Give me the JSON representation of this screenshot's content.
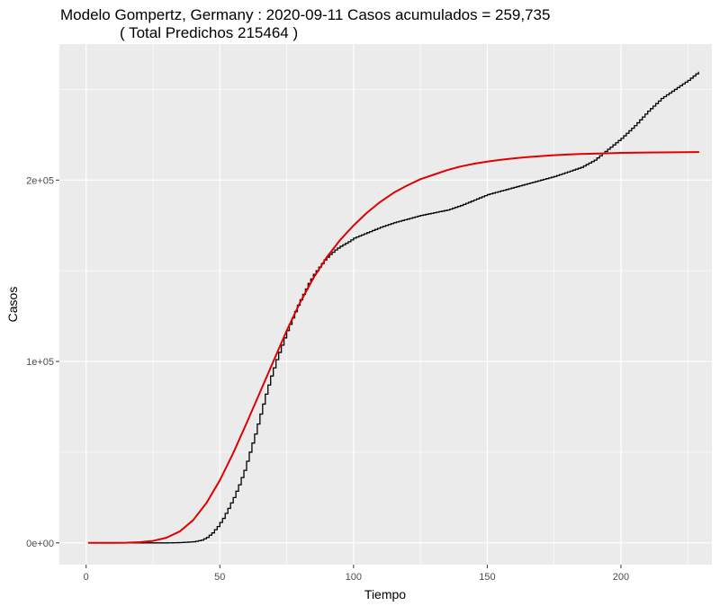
{
  "chart_data": {
    "type": "line",
    "title": "Modelo Gompertz, Germany : 2020-09-11 Casos acumulados =  259,735",
    "subtitle": "( Total Predichos  215464 )",
    "xlabel": "Tiempo",
    "ylabel": "Casos",
    "xlim": [
      -10,
      234
    ],
    "ylim": [
      -12000,
      275000
    ],
    "x_ticks": [
      0,
      50,
      100,
      150,
      200
    ],
    "x_tick_labels": [
      "0",
      "50",
      "100",
      "150",
      "200"
    ],
    "y_ticks": [
      0,
      100000,
      200000
    ],
    "y_tick_labels": [
      "0e+00",
      "1e+05",
      "2e+05"
    ],
    "grid": true,
    "panel_background": "#ebebeb",
    "series": [
      {
        "style": "step",
        "color": "#000000",
        "points": [
          [
            1,
            0
          ],
          [
            30,
            0
          ],
          [
            35,
            150
          ],
          [
            40,
            600
          ],
          [
            43,
            1500
          ],
          [
            45,
            3000
          ],
          [
            47,
            5500
          ],
          [
            49,
            9000
          ],
          [
            51,
            13500
          ],
          [
            53,
            19000
          ],
          [
            55,
            25000
          ],
          [
            57,
            32000
          ],
          [
            59,
            40000
          ],
          [
            61,
            50000
          ],
          [
            63,
            60000
          ],
          [
            65,
            71000
          ],
          [
            67,
            82000
          ],
          [
            69,
            92000
          ],
          [
            71,
            101000
          ],
          [
            73,
            109000
          ],
          [
            75,
            117000
          ],
          [
            77,
            124000
          ],
          [
            79,
            131000
          ],
          [
            81,
            137000
          ],
          [
            83,
            143000
          ],
          [
            85,
            148000
          ],
          [
            87,
            152000
          ],
          [
            89,
            156000
          ],
          [
            91,
            159000
          ],
          [
            93,
            161500
          ],
          [
            95,
            163500
          ],
          [
            98,
            166000
          ],
          [
            100,
            168000
          ],
          [
            105,
            171000
          ],
          [
            110,
            174000
          ],
          [
            115,
            176500
          ],
          [
            120,
            178500
          ],
          [
            125,
            180500
          ],
          [
            130,
            182000
          ],
          [
            135,
            183500
          ],
          [
            140,
            186000
          ],
          [
            145,
            189000
          ],
          [
            150,
            192000
          ],
          [
            155,
            194000
          ],
          [
            160,
            196000
          ],
          [
            165,
            198000
          ],
          [
            170,
            200000
          ],
          [
            175,
            202000
          ],
          [
            180,
            204500
          ],
          [
            185,
            207000
          ],
          [
            190,
            211000
          ],
          [
            195,
            217000
          ],
          [
            200,
            223000
          ],
          [
            205,
            230000
          ],
          [
            210,
            238000
          ],
          [
            215,
            245000
          ],
          [
            220,
            250000
          ],
          [
            225,
            255000
          ],
          [
            229,
            259735
          ]
        ]
      },
      {
        "style": "line",
        "color": "#e00000",
        "points": [
          [
            1,
            0
          ],
          [
            10,
            0
          ],
          [
            15,
            100
          ],
          [
            20,
            400
          ],
          [
            25,
            1100
          ],
          [
            30,
            2800
          ],
          [
            35,
            6300
          ],
          [
            40,
            12500
          ],
          [
            45,
            22000
          ],
          [
            50,
            34500
          ],
          [
            55,
            49500
          ],
          [
            60,
            66000
          ],
          [
            65,
            83000
          ],
          [
            70,
            100000
          ],
          [
            75,
            117000
          ],
          [
            80,
            132500
          ],
          [
            85,
            146000
          ],
          [
            90,
            157500
          ],
          [
            95,
            167000
          ],
          [
            100,
            175000
          ],
          [
            105,
            182000
          ],
          [
            110,
            188000
          ],
          [
            115,
            193000
          ],
          [
            120,
            197000
          ],
          [
            125,
            200500
          ],
          [
            130,
            203000
          ],
          [
            135,
            205500
          ],
          [
            140,
            207500
          ],
          [
            145,
            209000
          ],
          [
            150,
            210200
          ],
          [
            155,
            211200
          ],
          [
            160,
            212000
          ],
          [
            165,
            212700
          ],
          [
            170,
            213200
          ],
          [
            175,
            213700
          ],
          [
            180,
            214100
          ],
          [
            185,
            214400
          ],
          [
            190,
            214600
          ],
          [
            195,
            214800
          ],
          [
            200,
            215000
          ],
          [
            210,
            215200
          ],
          [
            220,
            215350
          ],
          [
            229,
            215464
          ]
        ]
      }
    ]
  }
}
